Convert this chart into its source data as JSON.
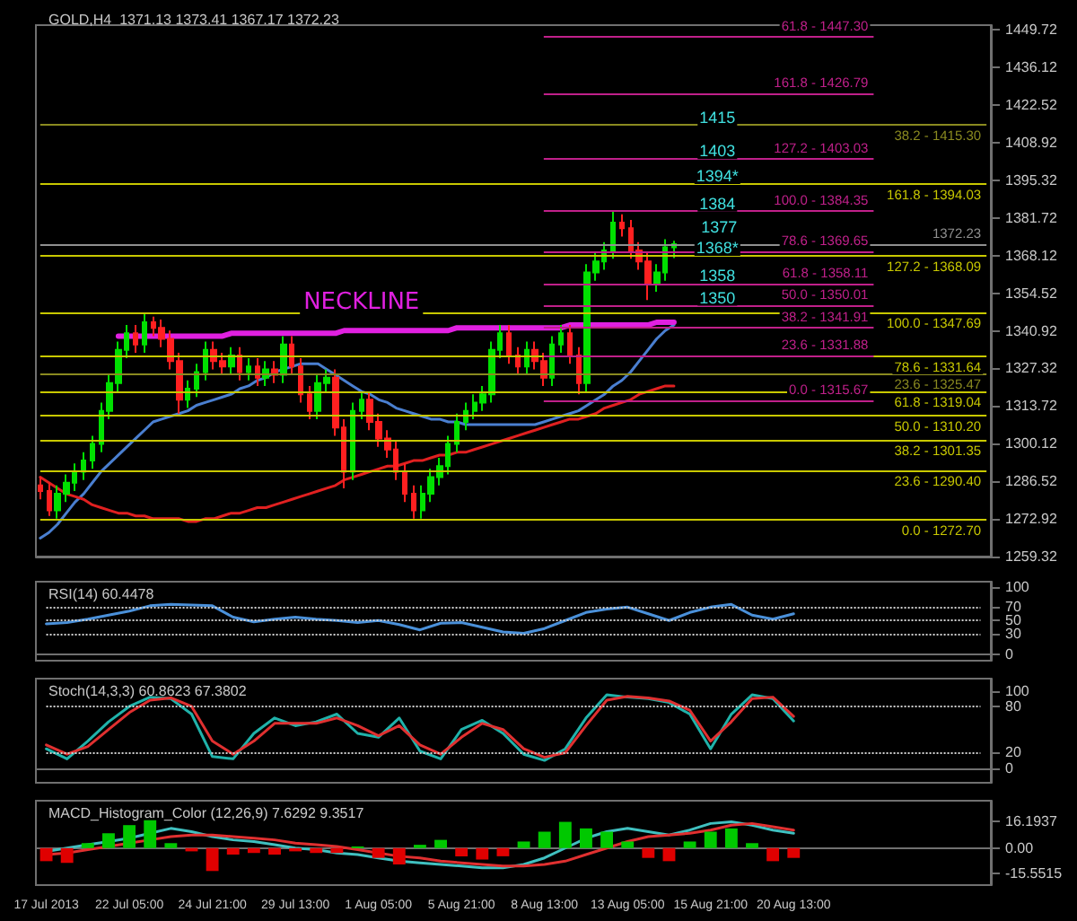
{
  "chart_data": [
    {
      "type": "candlestick",
      "title": "GOLD,H4  1371.13 1373.41 1367.17 1372.23",
      "tick_labels": "y",
      "categories": [
        null,
        null,
        null,
        null,
        null,
        null,
        null,
        null,
        null,
        null,
        null,
        null,
        null,
        null,
        null,
        null,
        null,
        null,
        null,
        null,
        null,
        null,
        null,
        null,
        null,
        null,
        null,
        null,
        null,
        null,
        null,
        null,
        null,
        null,
        null,
        null,
        null,
        null,
        null,
        null,
        null,
        null,
        null,
        null,
        null,
        null,
        null,
        null,
        null,
        null,
        null,
        null,
        null,
        null,
        null,
        null,
        null,
        null,
        null,
        null,
        null,
        null,
        null,
        null,
        null,
        null,
        null,
        null,
        null,
        null,
        null,
        null,
        null,
        null,
        null,
        null,
        null,
        null,
        null,
        null,
        null,
        null,
        null,
        null,
        null,
        null,
        null,
        null,
        null,
        null,
        null,
        null,
        null,
        null,
        null,
        null,
        null,
        null,
        null,
        null,
        null,
        null,
        null,
        null,
        null,
        null,
        null,
        null,
        null,
        null
      ],
      "ohlc": [
        [
          1285,
          1288,
          1280,
          1283
        ],
        [
          1283,
          1286,
          1274,
          1276
        ],
        [
          1276,
          1285,
          1273,
          1282
        ],
        [
          1282,
          1289,
          1279,
          1286
        ],
        [
          1286,
          1293,
          1283,
          1290
        ],
        [
          1290,
          1297,
          1287,
          1294
        ],
        [
          1294,
          1303,
          1291,
          1300
        ],
        [
          1300,
          1315,
          1297,
          1312
        ],
        [
          1312,
          1325,
          1309,
          1322
        ],
        [
          1322,
          1337,
          1319,
          1334
        ],
        [
          1334,
          1343,
          1331,
          1340
        ],
        [
          1340,
          1343,
          1333,
          1336
        ],
        [
          1336,
          1347,
          1333,
          1344
        ],
        [
          1344,
          1346,
          1339,
          1342
        ],
        [
          1342,
          1345,
          1335,
          1338
        ],
        [
          1338,
          1341,
          1327,
          1330
        ],
        [
          1330,
          1333,
          1311,
          1316
        ],
        [
          1316,
          1323,
          1313,
          1320
        ],
        [
          1320,
          1329,
          1317,
          1326
        ],
        [
          1326,
          1337,
          1323,
          1334
        ],
        [
          1334,
          1337,
          1327,
          1330
        ],
        [
          1330,
          1333,
          1325,
          1328
        ],
        [
          1328,
          1335,
          1325,
          1332
        ],
        [
          1332,
          1335,
          1323,
          1326
        ],
        [
          1326,
          1331,
          1323,
          1328
        ],
        [
          1328,
          1331,
          1321,
          1324
        ],
        [
          1324,
          1330,
          1321,
          1327
        ],
        [
          1327,
          1330,
          1322,
          1325
        ],
        [
          1325,
          1339,
          1322,
          1336
        ],
        [
          1336,
          1339,
          1325,
          1328
        ],
        [
          1328,
          1331,
          1315,
          1318
        ],
        [
          1318,
          1321,
          1309,
          1312
        ],
        [
          1312,
          1325,
          1309,
          1322
        ],
        [
          1322,
          1327,
          1319,
          1324
        ],
        [
          1324,
          1327,
          1303,
          1306
        ],
        [
          1306,
          1309,
          1284,
          1290
        ],
        [
          1290,
          1315,
          1287,
          1312
        ],
        [
          1312,
          1319,
          1309,
          1316
        ],
        [
          1316,
          1319,
          1305,
          1308
        ],
        [
          1308,
          1311,
          1299,
          1302
        ],
        [
          1302,
          1305,
          1295,
          1298
        ],
        [
          1298,
          1301,
          1287,
          1290
        ],
        [
          1290,
          1293,
          1279,
          1282
        ],
        [
          1282,
          1285,
          1273,
          1276
        ],
        [
          1276,
          1285,
          1273,
          1282
        ],
        [
          1282,
          1291,
          1279,
          1288
        ],
        [
          1288,
          1295,
          1285,
          1292
        ],
        [
          1292,
          1303,
          1289,
          1300
        ],
        [
          1300,
          1311,
          1297,
          1308
        ],
        [
          1308,
          1315,
          1305,
          1312
        ],
        [
          1312,
          1318,
          1309,
          1315
        ],
        [
          1315,
          1321,
          1312,
          1318
        ],
        [
          1318,
          1337,
          1315,
          1334
        ],
        [
          1334,
          1343,
          1331,
          1340
        ],
        [
          1340,
          1343,
          1329,
          1332
        ],
        [
          1332,
          1335,
          1325,
          1328
        ],
        [
          1328,
          1337,
          1325,
          1334
        ],
        [
          1334,
          1337,
          1327,
          1330
        ],
        [
          1330,
          1333,
          1321,
          1324
        ],
        [
          1324,
          1339,
          1321,
          1336
        ],
        [
          1336,
          1343,
          1333,
          1340
        ],
        [
          1340,
          1343,
          1329,
          1332
        ],
        [
          1332,
          1335,
          1318,
          1322
        ],
        [
          1322,
          1365,
          1319,
          1362
        ],
        [
          1362,
          1369,
          1359,
          1366
        ],
        [
          1366,
          1373,
          1363,
          1370
        ],
        [
          1370,
          1384,
          1367,
          1380
        ],
        [
          1380,
          1383,
          1375,
          1378
        ],
        [
          1378,
          1381,
          1367,
          1370
        ],
        [
          1370,
          1373,
          1363,
          1366
        ],
        [
          1366,
          1369,
          1352,
          1358
        ],
        [
          1358,
          1365,
          1355,
          1362
        ],
        [
          1362,
          1374,
          1359,
          1371.13
        ],
        [
          1371.13,
          1373.41,
          1367.17,
          1372.23
        ],
        null,
        null,
        null,
        null,
        null,
        null,
        null,
        null,
        null,
        null,
        null,
        null,
        null,
        null,
        null,
        null,
        null,
        null,
        null,
        null,
        null,
        null,
        null,
        null,
        null,
        null,
        null,
        null,
        null,
        null,
        null,
        null,
        null,
        null,
        null,
        null
      ],
      "series": [
        {
          "type": "line",
          "color": "#4a7fd0",
          "values": [
            1266,
            1268,
            1271,
            1275,
            1279,
            1282,
            1286,
            1290,
            1293,
            1296,
            1299,
            1302,
            1305,
            1308,
            1309,
            1310,
            1311,
            1312,
            1314,
            1315,
            1316,
            1317,
            1318,
            1320,
            1321,
            1323,
            1324,
            1326,
            1327,
            1328,
            1329,
            1329,
            1329,
            1327,
            1325,
            1323,
            1321,
            1319,
            1318,
            1316,
            1315,
            1313,
            1312,
            1311,
            1310,
            1309,
            1309,
            1308,
            1308,
            1307,
            1307,
            1307,
            1307,
            1307,
            1307,
            1307,
            1307,
            1307,
            1308,
            1309,
            1310,
            1311,
            1312,
            1314,
            1316,
            1318,
            1321,
            1323,
            1326,
            1330,
            1334,
            1338,
            1341,
            1343,
            null,
            null,
            null,
            null,
            null,
            null,
            null,
            null,
            null,
            null,
            null,
            null,
            null,
            null,
            null,
            null,
            null,
            null,
            null,
            null,
            null,
            null,
            null,
            null,
            null,
            null,
            null,
            null,
            null,
            null,
            null,
            null,
            null,
            null,
            null,
            null
          ]
        },
        {
          "type": "line",
          "color": "#e02020",
          "values": [
            1288,
            1286,
            1284,
            1282,
            1281,
            1280,
            1278,
            1277,
            1276,
            1275,
            1275,
            1274,
            1274,
            1273,
            1273,
            1273,
            1273,
            1272,
            1272,
            1273,
            1273,
            1274,
            1275,
            1275,
            1276,
            1277,
            1277,
            1278,
            1279,
            1280,
            1281,
            1282,
            1283,
            1284,
            1285,
            1287,
            1288,
            1289,
            1290,
            1291,
            1292,
            1292,
            1293,
            1294,
            1294,
            1295,
            1296,
            1296,
            1297,
            1297,
            1298,
            1299,
            1300,
            1301,
            1302,
            1303,
            1304,
            1305,
            1306,
            1307,
            1308,
            1309,
            1309,
            1310,
            1311,
            1313,
            1314,
            1315,
            1316,
            1318,
            1319,
            1320,
            1321,
            1321,
            null,
            null,
            null,
            null,
            null,
            null,
            null,
            null,
            null,
            null,
            null,
            null,
            null,
            null,
            null,
            null,
            null,
            null,
            null,
            null,
            null,
            null,
            null,
            null,
            null,
            null,
            null,
            null,
            null,
            null,
            null,
            null,
            null,
            null,
            null,
            null
          ]
        },
        {
          "type": "line",
          "name": "NECKLINE",
          "color": "#e020e0",
          "values": [
            null,
            null,
            null,
            null,
            null,
            null,
            null,
            null,
            null,
            1339,
            1339,
            1339,
            1339,
            1339,
            1339,
            1339,
            1339,
            1339,
            1339,
            1339,
            1339,
            1339,
            1340,
            1340,
            1340,
            1340,
            1340,
            1340,
            1340,
            1340,
            1340,
            1340,
            1340,
            1340,
            1340,
            1341,
            1341,
            1341,
            1341,
            1341,
            1341,
            1341,
            1341,
            1341,
            1341,
            1341,
            1341,
            1341,
            1342,
            1342,
            1342,
            1342,
            1342,
            1342,
            1342,
            1342,
            1342,
            1342,
            1342,
            1342,
            1342,
            1343,
            1343,
            1343,
            1343,
            1343,
            1343,
            1343,
            1343,
            1343,
            1343,
            1344,
            1344,
            1344,
            null,
            null,
            null,
            null,
            null,
            null,
            null,
            null,
            null,
            null,
            null,
            null,
            null,
            null,
            null,
            null,
            null,
            null,
            null,
            null,
            null,
            null,
            null,
            null,
            null,
            null,
            null,
            null,
            null,
            null,
            null,
            null,
            null,
            null,
            null,
            null
          ]
        }
      ],
      "ylim": [
        1259.32,
        1451.4
      ],
      "yticks": [
        1449.72,
        1436.12,
        1422.52,
        1408.92,
        1395.32,
        1381.72,
        1368.12,
        1354.52,
        1340.92,
        1327.32,
        1313.72,
        1300.12,
        1286.52,
        1272.92,
        1259.32
      ],
      "ref_lines": [
        {
          "axis": "y",
          "value": 1394.03,
          "color": "#c8c800"
        },
        {
          "axis": "y",
          "value": 1368.09,
          "color": "#c8c800"
        },
        {
          "axis": "y",
          "value": 1347.69,
          "color": "#c8c800"
        },
        {
          "axis": "y",
          "value": 1331.64,
          "color": "#c8c800"
        },
        {
          "axis": "y",
          "value": 1319.04,
          "color": "#c8c800"
        },
        {
          "axis": "y",
          "value": 1310.2,
          "color": "#c8c800"
        },
        {
          "axis": "y",
          "value": 1301.35,
          "color": "#c8c800"
        },
        {
          "axis": "y",
          "value": 1290.4,
          "color": "#c8c800"
        },
        {
          "axis": "y",
          "value": 1272.7,
          "color": "#c8c800"
        },
        {
          "axis": "y",
          "value": 1447.3,
          "color": "#c0208a"
        },
        {
          "axis": "y",
          "value": 1426.79,
          "color": "#c0208a"
        },
        {
          "axis": "y",
          "value": 1403.03,
          "color": "#c0208a"
        },
        {
          "axis": "y",
          "value": 1384.35,
          "color": "#c0208a"
        },
        {
          "axis": "y",
          "value": 1369.65,
          "color": "#c0208a"
        },
        {
          "axis": "y",
          "value": 1358.11,
          "color": "#c0208a"
        },
        {
          "axis": "y",
          "value": 1350.01,
          "color": "#c0208a"
        },
        {
          "axis": "y",
          "value": 1341.91,
          "color": "#c0208a"
        },
        {
          "axis": "y",
          "value": 1331.88,
          "color": "#c0208a"
        },
        {
          "axis": "y",
          "value": 1315.67,
          "color": "#c0208a"
        },
        {
          "axis": "y",
          "value": 1415.3,
          "color": "#8a8a20"
        },
        {
          "axis": "y",
          "value": 1325.47,
          "color": "#8a8a20"
        },
        {
          "axis": "y",
          "value": 1372.23,
          "label": "1372.23",
          "color": "#909090"
        }
      ],
      "annotations": [
        {
          "text": "161.8 - 1394.03",
          "y": 1394.03
        },
        {
          "text": "127.2 - 1368.09",
          "y": 1368.09
        },
        {
          "text": "100.0 - 1347.69",
          "y": 1347.69
        },
        {
          "text": "78.6 - 1331.64",
          "y": 1331.64
        },
        {
          "text": "61.8 - 1319.04",
          "y": 1319.04
        },
        {
          "text": "50.0 - 1310.20",
          "y": 1310.2
        },
        {
          "text": "38.2 - 1301.35",
          "y": 1301.35
        },
        {
          "text": "23.6 - 1290.40",
          "y": 1290.4
        },
        {
          "text": "0.0 - 1272.70",
          "y": 1272.7
        },
        {
          "text": "61.8 - 1447.30",
          "y": 1447.3
        },
        {
          "text": "161.8 - 1426.79",
          "y": 1426.79
        },
        {
          "text": "127.2 - 1403.03",
          "y": 1403.03
        },
        {
          "text": "100.0 - 1384.35",
          "y": 1384.35
        },
        {
          "text": "78.6 - 1369.65",
          "y": 1369.65
        },
        {
          "text": "61.8 - 1358.11",
          "y": 1358.11
        },
        {
          "text": "50.0 - 1350.01",
          "y": 1350.01
        },
        {
          "text": "38.2 - 1341.91",
          "y": 1341.91
        },
        {
          "text": "23.6 - 1331.88",
          "y": 1331.88
        },
        {
          "text": "0.0 - 1315.67",
          "y": 1315.67
        },
        {
          "text": "38.2 - 1415.30",
          "y": 1415.3
        },
        {
          "text": "23.6 - 1325.47",
          "y": 1325.47
        },
        {
          "text": "1415",
          "y": 1415
        },
        {
          "text": "1403",
          "y": 1403
        },
        {
          "text": "1394*",
          "y": 1394
        },
        {
          "text": "1384",
          "y": 1384
        },
        "1377",
        {
          "text": "1368*",
          "y": 1368
        },
        {
          "text": "1358",
          "y": 1358
        },
        {
          "text": "1350",
          "y": 1350
        }
      ]
    },
    {
      "type": "line",
      "title": "RSI(14) 60.4478",
      "tick_labels": "y",
      "categories": [
        null,
        null,
        null,
        null,
        null,
        null,
        null,
        null,
        null,
        null,
        null,
        null,
        null,
        null,
        null,
        null,
        null,
        null,
        null,
        null,
        null,
        null,
        null,
        null,
        null,
        null,
        null,
        null,
        null,
        null,
        null,
        null,
        null,
        null,
        null,
        null,
        null,
        null,
        null,
        null,
        null,
        null,
        null,
        null,
        null,
        null
      ],
      "series": [
        {
          "color": "#4a90d9",
          "values": [
            45,
            47,
            52,
            58,
            64,
            72,
            74,
            73,
            72,
            55,
            48,
            52,
            55,
            52,
            50,
            47,
            50,
            44,
            36,
            46,
            47,
            40,
            33,
            31,
            38,
            50,
            62,
            67,
            70,
            60,
            50,
            62,
            70,
            74,
            58,
            52,
            60,
            null,
            null,
            null,
            null,
            null,
            null,
            null,
            null,
            null
          ]
        }
      ],
      "ylim": [
        -10,
        108
      ],
      "yticks": [
        100,
        70,
        50,
        30,
        0
      ],
      "ref_lines": [
        {
          "axis": "y",
          "value": 70,
          "color": "#d0d0d0",
          "line_style": "dotted"
        },
        {
          "axis": "y",
          "value": 50,
          "color": "#d0d0d0",
          "line_style": "dotted"
        },
        {
          "axis": "y",
          "value": 30,
          "color": "#d0d0d0",
          "line_style": "dotted"
        }
      ]
    },
    {
      "type": "line",
      "title": "Stoch(14,3,3) 60.8623 67.3802",
      "tick_labels": "y",
      "categories": [
        null,
        null,
        null,
        null,
        null,
        null,
        null,
        null,
        null,
        null,
        null,
        null,
        null,
        null,
        null,
        null,
        null,
        null,
        null,
        null,
        null,
        null,
        null,
        null,
        null,
        null,
        null,
        null,
        null,
        null,
        null,
        null,
        null,
        null,
        null,
        null,
        null,
        null,
        null,
        null,
        null,
        null,
        null,
        null,
        null,
        null
      ],
      "series": [
        {
          "color": "#20b2aa",
          "values": [
            25,
            12,
            35,
            60,
            80,
            92,
            90,
            70,
            15,
            12,
            45,
            65,
            55,
            60,
            70,
            45,
            40,
            65,
            22,
            12,
            50,
            62,
            45,
            18,
            10,
            25,
            65,
            95,
            92,
            90,
            85,
            70,
            25,
            70,
            95,
            90,
            61,
            null,
            null,
            null,
            null,
            null,
            null,
            null,
            null,
            null
          ]
        },
        {
          "color": "#e03030",
          "values": [
            30,
            18,
            28,
            50,
            72,
            88,
            91,
            80,
            35,
            18,
            35,
            58,
            58,
            58,
            65,
            55,
            42,
            55,
            30,
            18,
            40,
            58,
            50,
            25,
            14,
            20,
            55,
            88,
            93,
            91,
            87,
            75,
            35,
            60,
            90,
            92,
            67,
            null,
            null,
            null,
            null,
            null,
            null,
            null,
            null,
            null
          ]
        }
      ],
      "ylim": [
        -19,
        116
      ],
      "yticks": [
        100,
        80,
        20,
        0
      ],
      "ref_lines": [
        {
          "axis": "y",
          "value": 80,
          "color": "#d0d0d0",
          "line_style": "dotted"
        },
        {
          "axis": "y",
          "value": 20,
          "color": "#d0d0d0",
          "line_style": "dotted"
        }
      ]
    },
    {
      "type": "bar",
      "title": "MACD_Histogram_Color (12,26,9) 7.6292 9.3517",
      "categories": [
        "17 Jul 2013",
        null,
        null,
        null,
        "22 Jul 05:00",
        null,
        null,
        null,
        "24 Jul 21:00",
        null,
        null,
        null,
        "29 Jul 13:00",
        null,
        null,
        null,
        "1 Aug 05:00",
        null,
        null,
        null,
        "5 Aug 21:00",
        null,
        null,
        null,
        "8 Aug 13:00",
        null,
        null,
        null,
        "13 Aug 05:00",
        null,
        null,
        null,
        "15 Aug 21:00",
        null,
        null,
        null,
        "20 Aug 13:00",
        null,
        null,
        null,
        null,
        null,
        null,
        null,
        null,
        null
      ],
      "values": [
        -8,
        -9,
        3,
        9,
        14,
        17,
        3,
        -2,
        -14,
        -4,
        -3,
        -4,
        -2,
        -3,
        -3,
        1,
        -6,
        -10,
        2,
        5,
        -5,
        -7,
        -5,
        4,
        10,
        16,
        12,
        10,
        4,
        -6,
        -8,
        4,
        10,
        12,
        3,
        -8,
        -6,
        null,
        null,
        null,
        null,
        null,
        null,
        null,
        null,
        null
      ],
      "colors": [
        "#e00000",
        "#e00000",
        "#00c800",
        "#00c800",
        "#00c800",
        "#00c800",
        "#00c800",
        "#e00000",
        "#e00000",
        "#e00000",
        "#e00000",
        "#e00000",
        "#e00000",
        "#e00000",
        "#e00000",
        "#00c800",
        "#e00000",
        "#e00000",
        "#00c800",
        "#00c800",
        "#e00000",
        "#e00000",
        "#e00000",
        "#00c800",
        "#00c800",
        "#00c800",
        "#00c800",
        "#00c800",
        "#00c800",
        "#e00000",
        "#e00000",
        "#00c800",
        "#00c800",
        "#00c800",
        "#00c800",
        "#e00000",
        "#e00000",
        null,
        null,
        null,
        null,
        null,
        null,
        null,
        null,
        null
      ],
      "series": [
        {
          "type": "line",
          "color": "#40c0c0",
          "values": [
            -2,
            0,
            2,
            4,
            6,
            9,
            12,
            10,
            7,
            5,
            4,
            2,
            0,
            -1,
            -3,
            -4,
            -6,
            -8,
            -9,
            -10,
            -11,
            -12,
            -12,
            -10,
            -6,
            0,
            6,
            10,
            12,
            10,
            8,
            11,
            15,
            16,
            14,
            11,
            9,
            null,
            null,
            null,
            null,
            null,
            null,
            null,
            null,
            null
          ]
        },
        {
          "type": "line",
          "color": "#e03030",
          "values": [
            -4,
            -3,
            -1,
            1,
            3,
            5,
            7,
            8,
            8,
            7,
            6,
            5,
            3,
            2,
            1,
            -1,
            -3,
            -5,
            -6,
            -8,
            -9,
            -10,
            -11,
            -11,
            -10,
            -8,
            -4,
            0,
            4,
            7,
            8,
            9,
            11,
            14,
            15,
            13,
            11,
            null,
            null,
            null,
            null,
            null,
            null,
            null,
            null,
            null
          ]
        }
      ],
      "ylim": [
        -22.6,
        28.9
      ],
      "yticks": [
        16.1937,
        {
          "value": 0,
          "label": "0.00"
        },
        -15.5515
      ]
    }
  ]
}
